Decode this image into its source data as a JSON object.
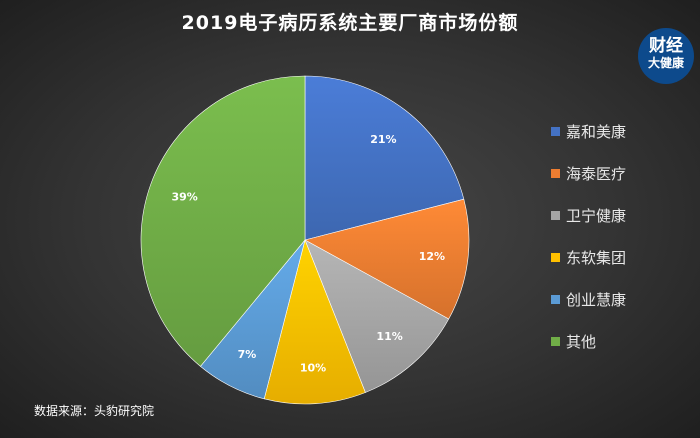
{
  "chart_data": {
    "type": "pie",
    "title": "2019电子病历系统主要厂商市场份额",
    "categories": [
      "嘉和美康",
      "海泰医疗",
      "卫宁健康",
      "东软集团",
      "创业慧康",
      "其他"
    ],
    "values": [
      21,
      12,
      11,
      10,
      7,
      39
    ],
    "labels": [
      "21%",
      "12%",
      "11%",
      "10%",
      "7%",
      "39%"
    ],
    "colors": [
      "#4472c4",
      "#ed7d31",
      "#a5a5a5",
      "#ffc000",
      "#5b9bd5",
      "#70ad47"
    ],
    "legend_position": "right",
    "start": "top, clockwise"
  },
  "source": "数据来源：头豹研究院",
  "logo": {
    "line1": "财经",
    "line2": "大健康"
  }
}
